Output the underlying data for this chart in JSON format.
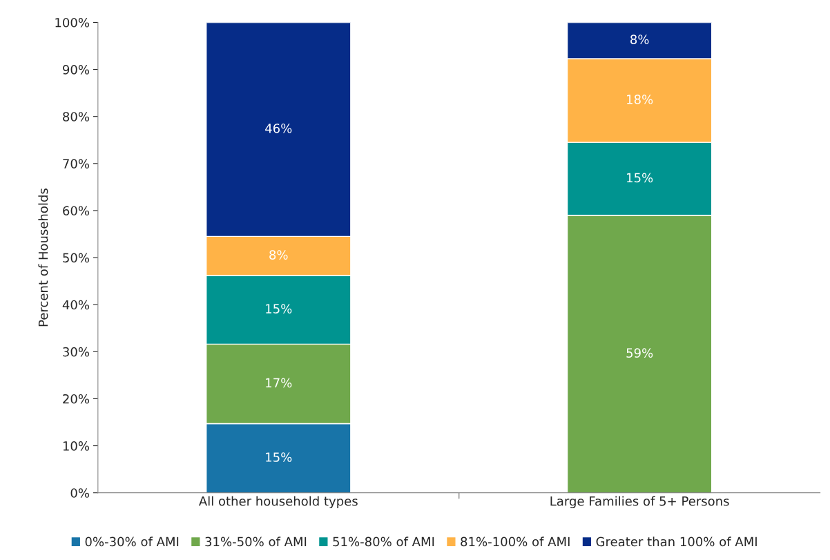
{
  "chart_data": {
    "type": "bar",
    "stacked": true,
    "ylabel": "Percent of Households",
    "categories": [
      "All other household types",
      "Large Families of 5+ Persons"
    ],
    "series": [
      {
        "name": "0%-30% of AMI",
        "color": "#1874a8",
        "values": [
          14.7,
          0
        ],
        "value_labels": [
          "15%",
          null
        ]
      },
      {
        "name": "31%-50% of AMI",
        "color": "#70a84c",
        "values": [
          16.9,
          59.0
        ],
        "value_labels": [
          "17%",
          "59%"
        ]
      },
      {
        "name": "51%-80% of AMI",
        "color": "#009490",
        "values": [
          14.6,
          15.5
        ],
        "value_labels": [
          "15%",
          "15%"
        ]
      },
      {
        "name": "81%-100% of AMI",
        "color": "#ffb347",
        "values": [
          8.3,
          17.8
        ],
        "value_labels": [
          "8%",
          "18%"
        ]
      },
      {
        "name": "Greater than 100% of AMI",
        "color": "#062c88",
        "values": [
          45.5,
          7.7
        ],
        "value_labels": [
          "46%",
          "8%"
        ]
      }
    ],
    "ylim": [
      0,
      100
    ],
    "yticks": [
      {
        "value": 0,
        "label": "0%"
      },
      {
        "value": 10,
        "label": "10%"
      },
      {
        "value": 20,
        "label": "20%"
      },
      {
        "value": 30,
        "label": "30%"
      },
      {
        "value": 40,
        "label": "40%"
      },
      {
        "value": 50,
        "label": "50%"
      },
      {
        "value": 60,
        "label": "60%"
      },
      {
        "value": 70,
        "label": "70%"
      },
      {
        "value": 80,
        "label": "80%"
      },
      {
        "value": 90,
        "label": "90%"
      },
      {
        "value": 100,
        "label": "100%"
      }
    ],
    "grid": false,
    "legend": "bottom"
  }
}
